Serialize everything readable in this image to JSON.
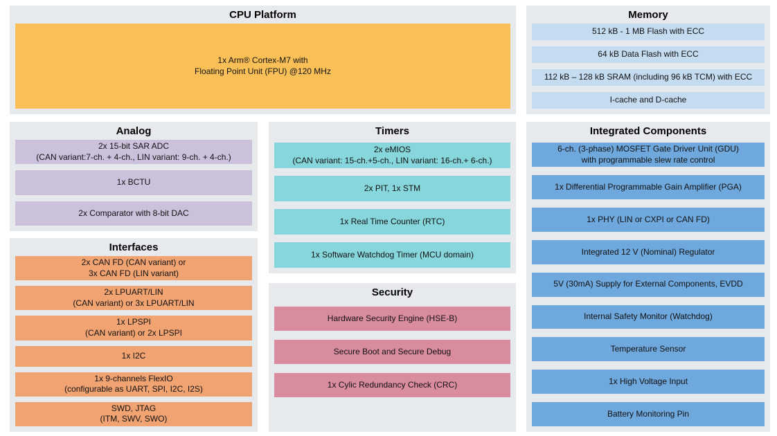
{
  "colors": {
    "page_bg": "#FFFFFF",
    "section_bg": "#E6EAED",
    "title": "#000000",
    "text": "#111111",
    "cpu_block": "#FBBF58",
    "memory_block": "#C5DCF0",
    "analog_block": "#CBC1DB",
    "interfaces_block": "#F1A372",
    "timers_block": "#86D6DC",
    "security_block": "#D98C9D",
    "integrated_block": "#6FA8DC"
  },
  "sections": {
    "cpu_platform": {
      "title": "CPU Platform",
      "blocks": [
        {
          "lines": [
            "1x Arm® Cortex-M7 with",
            "Floating Point Unit (FPU) @120 MHz"
          ]
        }
      ]
    },
    "memory": {
      "title": "Memory",
      "blocks": [
        {
          "lines": [
            "512 kB - 1 MB Flash with ECC"
          ]
        },
        {
          "lines": [
            "64 kB Data Flash with ECC"
          ]
        },
        {
          "lines": [
            "112 kB – 128 kB SRAM (including 96 kB TCM) with ECC"
          ]
        },
        {
          "lines": [
            "I-cache and D-cache"
          ]
        }
      ]
    },
    "analog": {
      "title": "Analog",
      "blocks": [
        {
          "lines": [
            "2x 15-bit SAR ADC",
            "(CAN variant:7-ch. + 4-ch., LIN variant: 9-ch. + 4-ch.)"
          ]
        },
        {
          "lines": [
            "1x BCTU"
          ]
        },
        {
          "lines": [
            "2x Comparator with 8-bit DAC"
          ]
        }
      ]
    },
    "interfaces": {
      "title": "Interfaces",
      "blocks": [
        {
          "lines": [
            "2x CAN FD (CAN variant) or",
            "3x CAN FD (LIN variant)"
          ]
        },
        {
          "lines": [
            "2x LPUART/LIN",
            "(CAN variant) or 3x LPUART/LIN"
          ]
        },
        {
          "lines": [
            "1x LPSPI",
            "(CAN variant) or 2x LPSPI"
          ]
        },
        {
          "lines": [
            "1x I2C"
          ]
        },
        {
          "lines": [
            "1x 9-channels FlexIO",
            "(configurable as UART, SPI, I2C, I2S)"
          ]
        },
        {
          "lines": [
            "SWD, JTAG",
            "(ITM, SWV, SWO)"
          ]
        }
      ]
    },
    "timers": {
      "title": "Timers",
      "blocks": [
        {
          "lines": [
            "2x eMIOS",
            "(CAN variant: 15-ch.+5-ch., LIN variant: 16-ch.+ 6-ch.)"
          ]
        },
        {
          "lines": [
            "2x PIT, 1x STM"
          ]
        },
        {
          "lines": [
            "1x Real Time Counter (RTC)"
          ]
        },
        {
          "lines": [
            "1x Software Watchdog Timer (MCU domain)"
          ]
        }
      ]
    },
    "security": {
      "title": "Security",
      "blocks": [
        {
          "lines": [
            "Hardware Security Engine (HSE-B)"
          ]
        },
        {
          "lines": [
            "Secure Boot and Secure Debug"
          ]
        },
        {
          "lines": [
            "1x Cylic Redundancy Check (CRC)"
          ]
        }
      ]
    },
    "integrated_components": {
      "title": "Integrated Components",
      "blocks": [
        {
          "lines": [
            "6-ch. (3-phase) MOSFET Gate Driver Unit (GDU)",
            "with programmable slew rate control"
          ]
        },
        {
          "lines": [
            "1x Differential Programmable Gain Amplifier (PGA)"
          ]
        },
        {
          "lines": [
            "1x PHY (LIN or CXPI or CAN FD)"
          ]
        },
        {
          "lines": [
            "Integrated 12 V (Nominal) Regulator"
          ]
        },
        {
          "lines": [
            "5V (30mA) Supply for External Components, EVDD"
          ]
        },
        {
          "lines": [
            "Internal Safety Monitor (Watchdog)"
          ]
        },
        {
          "lines": [
            "Temperature Sensor"
          ]
        },
        {
          "lines": [
            "1x High Voltage Input"
          ]
        },
        {
          "lines": [
            "Battery Monitoring Pin"
          ]
        }
      ]
    }
  }
}
